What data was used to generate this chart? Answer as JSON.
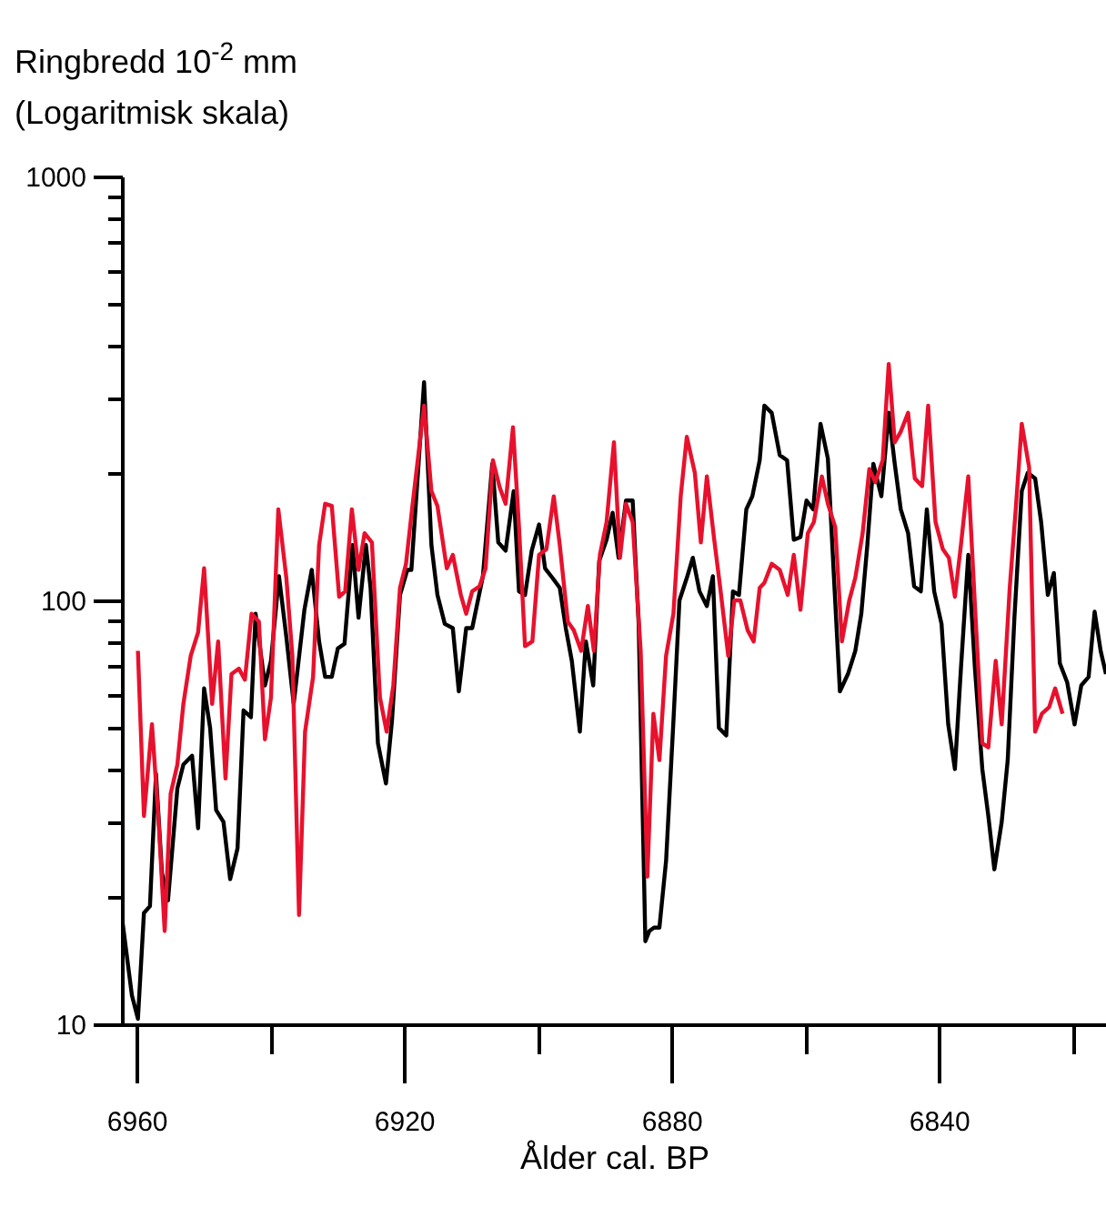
{
  "chart_data": {
    "type": "line",
    "ylabel": "Ringbredd 10$^{-2}$ mm (Logaritmisk skala)",
    "xlabel": "Ålder cal. BP",
    "log": true,
    "xlim": [
      6962.2,
      6815
    ],
    "xticks": [
      6960,
      {
        "value": 6940,
        "label": null
      },
      6920,
      {
        "value": 6900,
        "label": null
      },
      6880,
      {
        "value": 6860,
        "label": null
      },
      6840,
      {
        "value": 6820,
        "label": null
      }
    ],
    "ylim": [
      10,
      1000
    ],
    "yticks": [
      10,
      {
        "value": 20,
        "label": null
      },
      {
        "value": 30,
        "label": null
      },
      {
        "value": 40,
        "label": null
      },
      {
        "value": 50,
        "label": null
      },
      {
        "value": 60,
        "label": null
      },
      {
        "value": 70,
        "label": null
      },
      {
        "value": 80,
        "label": null
      },
      {
        "value": 90,
        "label": null
      },
      100,
      {
        "value": 200,
        "label": null
      },
      {
        "value": 300,
        "label": null
      },
      {
        "value": 400,
        "label": null
      },
      {
        "value": 500,
        "label": null
      },
      {
        "value": 600,
        "label": null
      },
      {
        "value": 700,
        "label": null
      },
      {
        "value": 800,
        "label": null
      },
      {
        "value": 900,
        "label": null
      },
      1000
    ],
    "series": [
      {
        "color": "#000000",
        "x": [
          6962.1,
          6960.7,
          6959.8,
          6958.9,
          6958.0,
          6957.1,
          6956.2,
          6955.3,
          6953.9,
          6953.0,
          6951.7,
          6950.8,
          6949.9,
          6949.0,
          6948.1,
          6947.0,
          6946.0,
          6944.9,
          6944.0,
          6942.9,
          6942.2,
          6940.8,
          6939.9,
          6938.7,
          6937.6,
          6936.5,
          6934.9,
          6933.8,
          6932.7,
          6931.8,
          6930.8,
          6929.9,
          6928.9,
          6927.7,
          6926.8,
          6925.7,
          6925.0,
          6923.9,
          6922.7,
          6921.8,
          6920.6,
          6919.5,
          6918.9,
          6917.0,
          6915.9,
          6915.0,
          6913.9,
          6912.7,
          6911.8,
          6910.7,
          6909.8,
          6908.2,
          6906.8,
          6905.9,
          6904.8,
          6903.6,
          6902.8,
          6901.9,
          6900.9,
          6899.8,
          6898.9,
          6897.8,
          6896.7,
          6895.8,
          6894.9,
          6893.7,
          6892.8,
          6891.7,
          6890.8,
          6889.7,
          6888.8,
          6887.9,
          6886.8,
          6885.8,
          6884.9,
          6883.9,
          6883.3,
          6882.6,
          6881.8,
          6880.8,
          6879.7,
          6878.8,
          6877.7,
          6876.8,
          6875.8,
          6874.7,
          6873.8,
          6872.9,
          6871.8,
          6870.8,
          6869.9,
          6868.8,
          6867.9,
          6866.8,
          6866.1,
          6865.0,
          6863.8,
          6862.7,
          6861.7,
          6860.7,
          6859.8,
          6858.8,
          6857.7,
          6856.6,
          6855.7,
          6854.8,
          6853.6,
          6852.5,
          6851.6,
          6850.7,
          6849.8,
          6848.6,
          6847.5,
          6846.6,
          6845.7,
          6844.6,
          6843.7,
          6842.7,
          6841.8,
          6840.7,
          6839.6,
          6838.6,
          6837.6,
          6836.7,
          6835.6,
          6834.6,
          6833.5,
          6832.6,
          6831.7,
          6830.6,
          6829.7,
          6828.7,
          6827.6,
          6826.7,
          6825.6,
          6824.7,
          6823.7,
          6822.8,
          6821.9,
          6820.8,
          6819.7,
          6818.7,
          6817.6,
          6816.7,
          6815.8,
          6815.0
        ],
        "values": [
          17.4,
          11.7,
          10.3,
          18.3,
          19.0,
          39,
          22.7,
          19.6,
          36,
          41,
          43,
          29,
          62,
          50,
          32,
          30,
          22,
          26,
          55,
          53,
          93,
          63,
          72,
          114,
          82,
          57,
          95,
          118,
          80,
          66,
          66,
          77,
          79,
          135,
          91,
          135,
          107,
          46,
          37,
          52,
          103,
          118,
          118,
          327,
          135,
          103,
          88,
          86,
          61,
          86,
          86,
          114,
          210,
          137,
          131,
          181,
          105,
          103,
          131,
          151,
          119,
          113,
          107,
          86,
          72,
          49,
          80,
          63,
          124,
          139,
          161,
          126,
          172,
          172,
          88,
          15.7,
          16.6,
          16.9,
          16.9,
          24.3,
          52,
          100,
          113,
          126,
          105,
          97,
          114,
          50,
          48,
          105,
          103,
          164,
          176,
          214,
          288,
          277,
          220,
          214,
          139,
          141,
          172,
          164,
          261,
          216,
          114,
          61,
          67,
          76,
          93,
          135,
          210,
          176,
          277,
          210,
          164,
          144,
          108,
          105,
          164,
          105,
          88,
          51,
          40,
          69,
          128,
          69,
          40,
          31,
          23.2,
          30,
          42,
          91,
          181,
          200,
          194,
          153,
          103,
          116,
          71,
          64,
          51,
          63,
          66,
          94,
          76,
          67
        ]
      },
      {
        "color": "#e8112d",
        "x": [
          6959.8,
          6958.9,
          6957.7,
          6956.7,
          6955.8,
          6954.9,
          6953.9,
          6953.0,
          6951.9,
          6950.8,
          6949.9,
          6948.7,
          6947.8,
          6946.7,
          6945.8,
          6944.7,
          6943.8,
          6942.8,
          6941.7,
          6940.8,
          6939.9,
          6938.8,
          6937.6,
          6936.7,
          6935.7,
          6934.8,
          6933.6,
          6932.7,
          6931.8,
          6930.8,
          6929.7,
          6928.8,
          6927.8,
          6926.8,
          6925.9,
          6924.8,
          6923.6,
          6922.6,
          6921.6,
          6920.6,
          6919.7,
          6918.8,
          6917.0,
          6915.9,
          6915.0,
          6913.6,
          6912.7,
          6911.5,
          6910.7,
          6909.8,
          6908.7,
          6907.8,
          6906.7,
          6905.7,
          6904.8,
          6903.7,
          6902.8,
          6901.9,
          6900.8,
          6899.8,
          6898.7,
          6897.6,
          6896.7,
          6895.5,
          6894.6,
          6893.5,
          6892.5,
          6891.6,
          6890.7,
          6889.7,
          6888.6,
          6887.7,
          6886.8,
          6885.8,
          6884.6,
          6883.6,
          6882.7,
          6881.8,
          6880.8,
          6879.7,
          6878.6,
          6877.7,
          6876.5,
          6875.6,
          6874.7,
          6873.6,
          6872.7,
          6871.5,
          6870.6,
          6869.7,
          6868.6,
          6867.7,
          6866.8,
          6866.1,
          6865.0,
          6863.8,
          6862.6,
          6861.7,
          6860.7,
          6859.6,
          6858.7,
          6857.5,
          6856.6,
          6855.5,
          6854.5,
          6853.4,
          6852.5,
          6851.4,
          6850.4,
          6849.5,
          6848.4,
          6847.5,
          6846.6,
          6845.7,
          6844.6,
          6843.6,
          6842.5,
          6841.6,
          6840.5,
          6839.4,
          6838.5,
          6837.6,
          6836.7,
          6835.6,
          6834.6,
          6833.5,
          6832.6,
          6831.5,
          6830.6,
          6829.4,
          6828.5,
          6827.6,
          6826.5,
          6825.6,
          6824.6,
          6823.5,
          6822.6,
          6821.5
        ],
        "values": [
          76,
          31,
          51,
          30,
          16.6,
          35,
          41,
          57,
          74,
          84,
          119,
          57,
          80,
          38,
          67,
          69,
          65,
          93,
          89,
          47,
          59,
          164,
          113,
          74,
          18.1,
          49,
          66,
          135,
          169,
          167,
          102,
          105,
          164,
          118,
          144,
          137,
          59,
          49,
          63,
          107,
          122,
          164,
          288,
          181,
          167,
          119,
          128,
          103,
          93,
          105,
          108,
          119,
          214,
          185,
          169,
          256,
          149,
          78,
          80,
          128,
          132,
          176,
          135,
          89,
          85,
          76,
          97,
          76,
          128,
          153,
          236,
          126,
          169,
          153,
          76,
          22.3,
          54,
          42,
          74,
          93,
          177,
          243,
          200,
          137,
          196,
          139,
          107,
          74,
          100,
          100,
          85,
          80,
          107,
          110,
          122,
          118,
          103,
          128,
          95,
          144,
          153,
          196,
          169,
          149,
          80,
          100,
          113,
          144,
          204,
          190,
          214,
          361,
          236,
          250,
          277,
          194,
          186,
          288,
          153,
          132,
          126,
          102,
          135,
          196,
          97,
          46,
          45,
          72,
          51,
          107,
          164,
          261,
          206,
          49,
          54,
          56,
          62,
          54
        ]
      }
    ]
  }
}
